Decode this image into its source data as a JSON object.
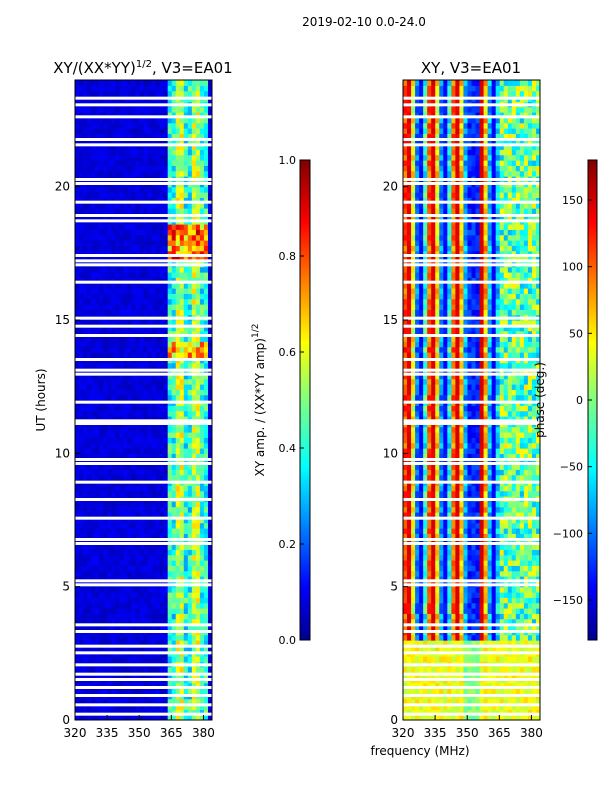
{
  "figure_title": "2019-02-10 0.0-24.0",
  "chart_data": [
    {
      "type": "heatmap",
      "title_main": "XY/(XX*YY)",
      "title_sup": "1/2",
      "title_suffix": ", V3=EA01",
      "ylabel": "UT (hours)",
      "xlabel": "",
      "xlim": [
        320,
        384
      ],
      "ylim": [
        0,
        24
      ],
      "xticks": [
        320,
        335,
        350,
        365,
        380
      ],
      "yticks": [
        0,
        5,
        10,
        15,
        20
      ],
      "quantity": "amplitude",
      "colorbar": {
        "label_main": "XY amp. / (XX*YY amp)",
        "label_sup": "1/2",
        "range": [
          0.0,
          1.0
        ],
        "ticks": [
          "0.0",
          "0.2",
          "0.4",
          "0.6",
          "0.8",
          "1.0"
        ],
        "colormap": "jet"
      },
      "bright_band_mhz": [
        363,
        383
      ],
      "flagged_hours": [
        0.2,
        0.55,
        0.9,
        1.2,
        1.5,
        1.7,
        2.05,
        2.5,
        2.75,
        3.3,
        3.55,
        5.05,
        5.2,
        6.6,
        6.75,
        7.55,
        8.25,
        8.9,
        9.6,
        9.75,
        11.1,
        11.2,
        11.9,
        12.95,
        13.1,
        13.5,
        14.4,
        14.75,
        15.05,
        16.4,
        17.05,
        17.2,
        17.4,
        18.7,
        18.9,
        19.4,
        20.1,
        20.25,
        21.55,
        21.75,
        22.6,
        23.05,
        23.3
      ]
    },
    {
      "type": "heatmap",
      "title_main": "XY, V3=EA01",
      "ylabel": "",
      "xlabel": "frequency (MHz)",
      "xlim": [
        320,
        384
      ],
      "ylim": [
        0,
        24
      ],
      "xticks": [
        320,
        335,
        350,
        365,
        380
      ],
      "yticks": [
        0,
        5,
        10,
        15,
        20
      ],
      "quantity": "phase",
      "colorbar": {
        "label_main": "phase (deg.)",
        "range": [
          -180,
          180
        ],
        "ticks": [
          "150",
          "100",
          "50",
          "0",
          "−50",
          "−100",
          "−150"
        ],
        "tick_values": [
          150,
          100,
          50,
          0,
          -50,
          -100,
          -150
        ],
        "colormap": "jet"
      },
      "flagged_hours": [
        0.2,
        0.55,
        0.9,
        1.2,
        1.5,
        1.7,
        2.05,
        2.5,
        2.75,
        3.3,
        3.55,
        5.05,
        5.2,
        6.6,
        6.75,
        7.55,
        8.25,
        8.9,
        9.6,
        9.75,
        11.1,
        11.2,
        11.9,
        12.95,
        13.1,
        13.5,
        14.4,
        14.75,
        15.05,
        16.4,
        17.05,
        17.2,
        17.4,
        18.7,
        18.9,
        19.4,
        20.1,
        20.25,
        21.55,
        21.75,
        22.6,
        23.05,
        23.3
      ]
    }
  ]
}
